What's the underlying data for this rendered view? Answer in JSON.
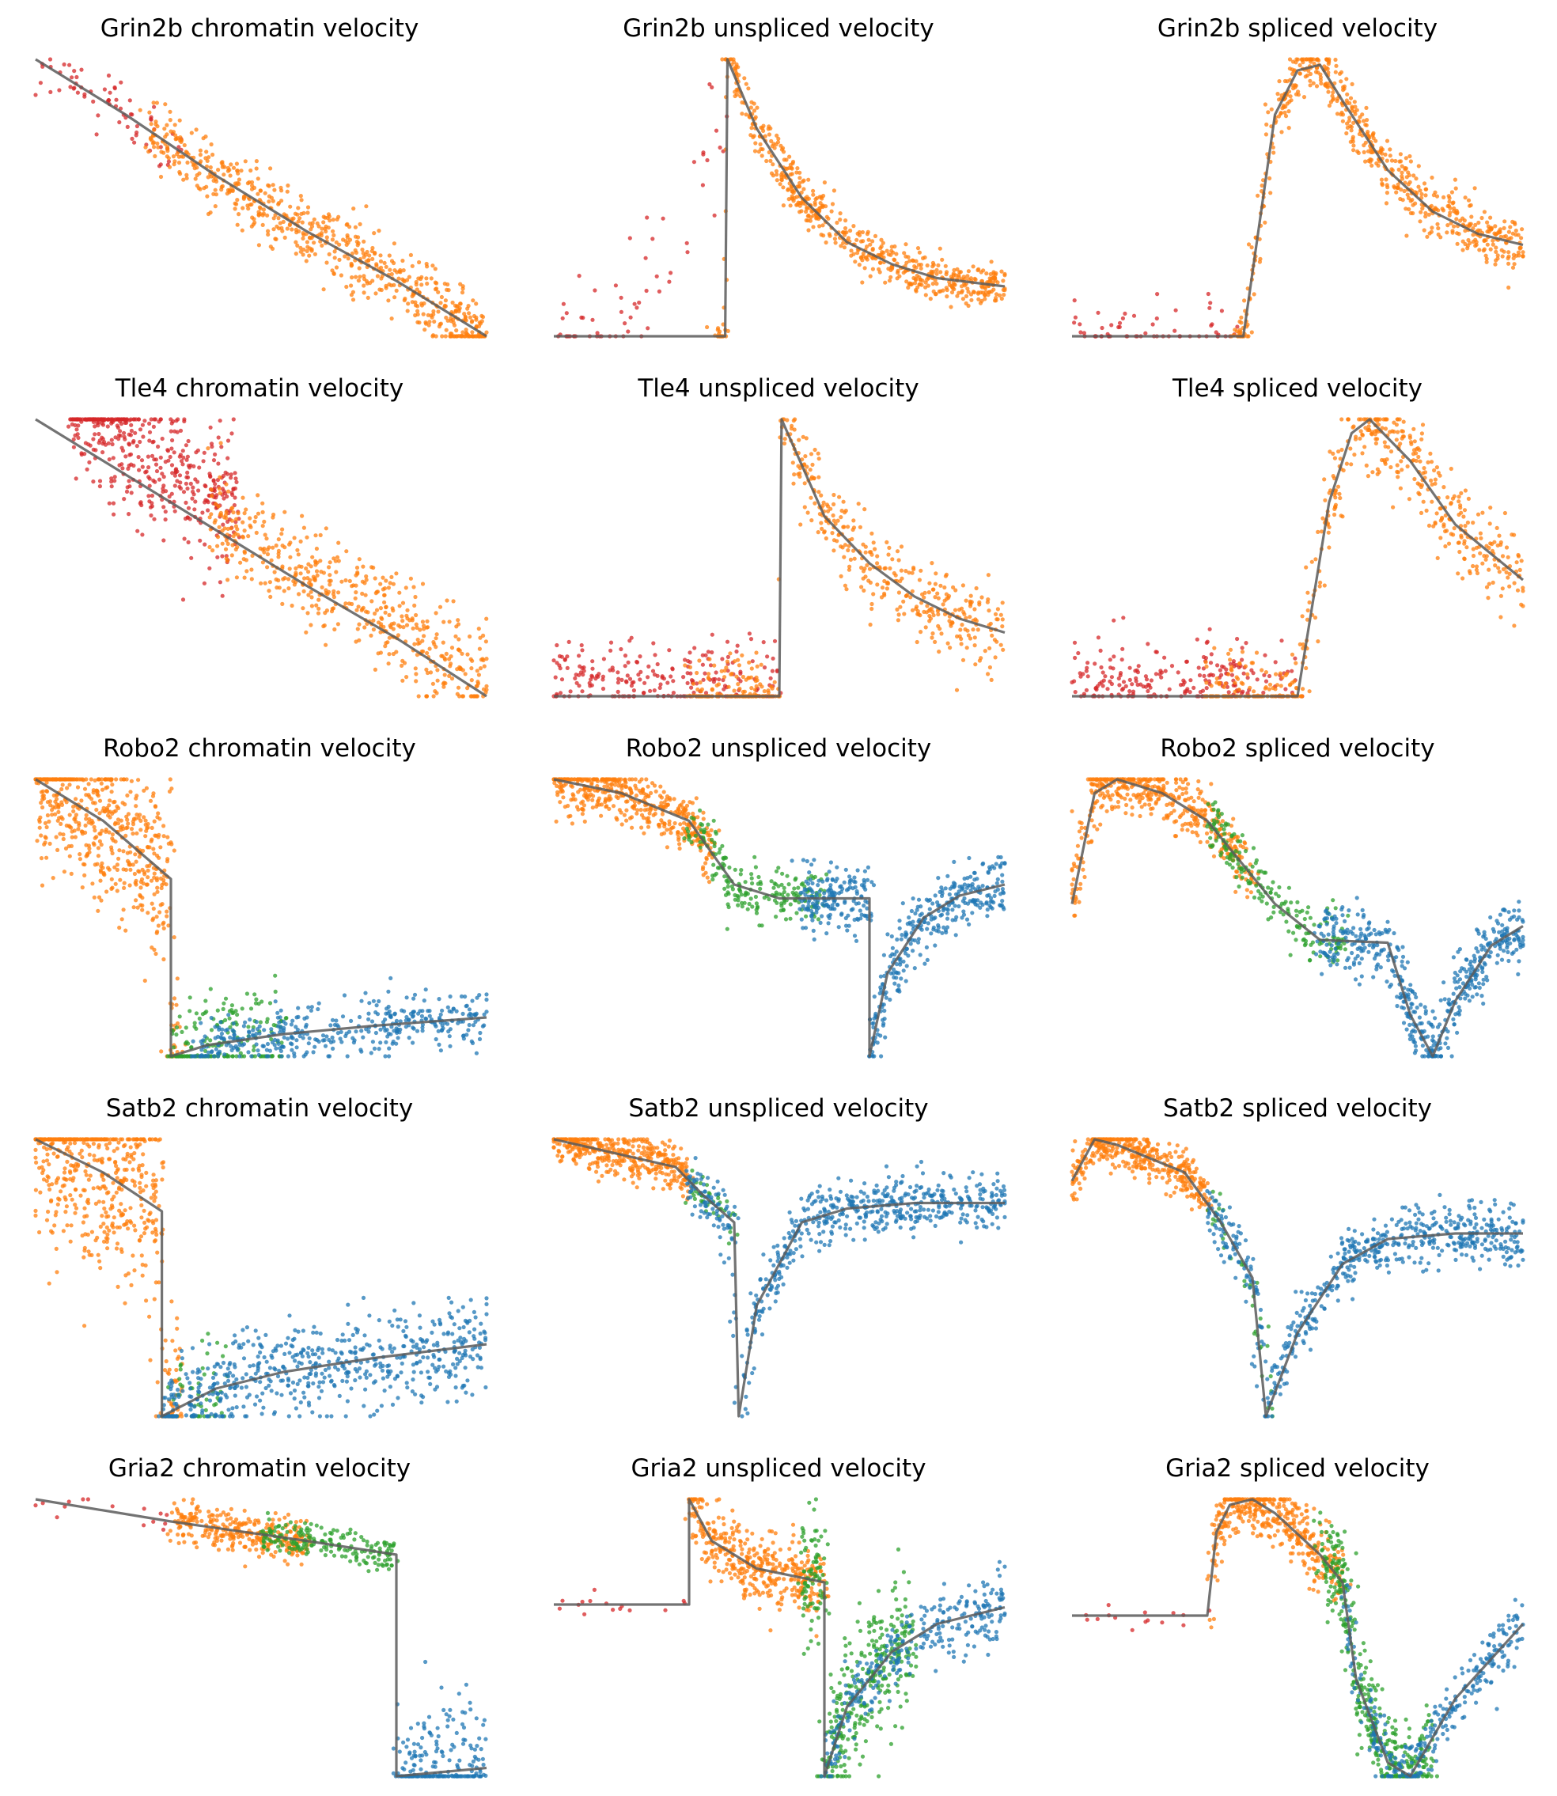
{
  "figure": {
    "rows": 5,
    "cols": 3,
    "colors": {
      "red": "#d62728",
      "orange": "#ff7f0e",
      "green": "#2ca02c",
      "blue": "#1f77b4",
      "curve": "#5a5a5a"
    }
  },
  "chart_data": [
    {
      "type": "scatter",
      "title": "Grin2b chromatin velocity",
      "gene": "Grin2b",
      "layer": "chromatin",
      "axes": "hidden",
      "curve": [
        [
          0,
          0
        ],
        [
          0.1,
          0.1
        ],
        [
          0.2,
          0.2
        ],
        [
          0.3,
          0.31
        ],
        [
          0.4,
          0.42
        ],
        [
          0.5,
          0.52
        ],
        [
          0.6,
          0.62
        ],
        [
          0.7,
          0.71
        ],
        [
          0.8,
          0.8
        ],
        [
          0.9,
          0.9
        ],
        [
          1,
          1
        ]
      ],
      "clusters": [
        {
          "color": "red",
          "n": 70,
          "x": [
            0.0,
            0.32
          ],
          "band": 0.06
        },
        {
          "color": "orange",
          "n": 650,
          "x": [
            0.25,
            1.0
          ],
          "band": 0.06
        }
      ]
    },
    {
      "type": "scatter",
      "title": "Grin2b unspliced velocity",
      "gene": "Grin2b",
      "layer": "unspliced",
      "axes": "hidden",
      "curve": [
        [
          0,
          1
        ],
        [
          0.38,
          1
        ],
        [
          0.385,
          0
        ],
        [
          0.45,
          0.25
        ],
        [
          0.55,
          0.5
        ],
        [
          0.65,
          0.66
        ],
        [
          0.75,
          0.74
        ],
        [
          0.85,
          0.79
        ],
        [
          1,
          0.82
        ]
      ],
      "clusters": [
        {
          "color": "red",
          "n": 60,
          "x": [
            0.0,
            0.38
          ],
          "band": 0.12,
          "shape": "rise"
        },
        {
          "color": "orange",
          "n": 600,
          "x": [
            0.36,
            1.0
          ],
          "band": 0.04
        }
      ]
    },
    {
      "type": "scatter",
      "title": "Grin2b spliced velocity",
      "gene": "Grin2b",
      "layer": "spliced",
      "axes": "hidden",
      "curve": [
        [
          0,
          1
        ],
        [
          0.38,
          1
        ],
        [
          0.45,
          0.2
        ],
        [
          0.5,
          0.04
        ],
        [
          0.55,
          0.02
        ],
        [
          0.6,
          0.15
        ],
        [
          0.7,
          0.4
        ],
        [
          0.8,
          0.55
        ],
        [
          0.9,
          0.63
        ],
        [
          1,
          0.67
        ]
      ],
      "clusters": [
        {
          "color": "red",
          "n": 60,
          "x": [
            0.0,
            0.38
          ],
          "band": 0.06
        },
        {
          "color": "orange",
          "n": 600,
          "x": [
            0.36,
            1.0
          ],
          "band": 0.05
        }
      ]
    },
    {
      "type": "scatter",
      "title": "Tle4 chromatin velocity",
      "gene": "Tle4",
      "layer": "chromatin",
      "axes": "hidden",
      "curve": [
        [
          0,
          0
        ],
        [
          0.2,
          0.2
        ],
        [
          0.4,
          0.4
        ],
        [
          0.6,
          0.6
        ],
        [
          0.8,
          0.79
        ],
        [
          1,
          1
        ]
      ],
      "clusters": [
        {
          "color": "red",
          "n": 450,
          "x": [
            0.08,
            0.45
          ],
          "band": 0.12,
          "offset": -0.12
        },
        {
          "color": "orange",
          "n": 500,
          "x": [
            0.38,
            1.0
          ],
          "band": 0.09,
          "offset": -0.05
        }
      ]
    },
    {
      "type": "scatter",
      "title": "Tle4 unspliced velocity",
      "gene": "Tle4",
      "layer": "unspliced",
      "axes": "hidden",
      "curve": [
        [
          0,
          1
        ],
        [
          0.5,
          1
        ],
        [
          0.505,
          0
        ],
        [
          0.6,
          0.35
        ],
        [
          0.7,
          0.52
        ],
        [
          0.8,
          0.64
        ],
        [
          0.9,
          0.72
        ],
        [
          1,
          0.77
        ]
      ],
      "clusters": [
        {
          "color": "red",
          "n": 220,
          "x": [
            0.0,
            0.5
          ],
          "band": 0.05,
          "shape": "flat"
        },
        {
          "color": "orange",
          "n": 500,
          "x": [
            0.3,
            1.0
          ],
          "band": 0.07
        }
      ]
    },
    {
      "type": "scatter",
      "title": "Tle4 spliced velocity",
      "gene": "Tle4",
      "layer": "spliced",
      "axes": "hidden",
      "curve": [
        [
          0,
          1
        ],
        [
          0.5,
          1
        ],
        [
          0.57,
          0.3
        ],
        [
          0.62,
          0.05
        ],
        [
          0.66,
          0.0
        ],
        [
          0.75,
          0.15
        ],
        [
          0.85,
          0.38
        ],
        [
          1,
          0.58
        ]
      ],
      "clusters": [
        {
          "color": "red",
          "n": 220,
          "x": [
            0.0,
            0.5
          ],
          "band": 0.04,
          "shape": "flat"
        },
        {
          "color": "orange",
          "n": 500,
          "x": [
            0.3,
            1.0
          ],
          "band": 0.08
        }
      ]
    },
    {
      "type": "scatter",
      "title": "Robo2 chromatin velocity",
      "gene": "Robo2",
      "layer": "chromatin",
      "axes": "hidden",
      "curve": [
        [
          0,
          0
        ],
        [
          0.15,
          0.15
        ],
        [
          0.3,
          0.36
        ],
        [
          0.3,
          1
        ],
        [
          0.38,
          0.96
        ],
        [
          0.55,
          0.92
        ],
        [
          0.75,
          0.89
        ],
        [
          1,
          0.86
        ]
      ],
      "clusters": [
        {
          "color": "orange",
          "n": 550,
          "x": [
            0.0,
            0.32
          ],
          "band": 0.15
        },
        {
          "color": "green",
          "n": 180,
          "x": [
            0.3,
            0.55
          ],
          "band": 0.1
        },
        {
          "color": "blue",
          "n": 400,
          "x": [
            0.35,
            1.0
          ],
          "band": 0.05
        }
      ]
    },
    {
      "type": "scatter",
      "title": "Robo2 unspliced velocity",
      "gene": "Robo2",
      "layer": "unspliced",
      "axes": "hidden",
      "curve": [
        [
          0,
          0
        ],
        [
          0.15,
          0.05
        ],
        [
          0.3,
          0.15
        ],
        [
          0.4,
          0.38
        ],
        [
          0.5,
          0.43
        ],
        [
          0.7,
          0.43
        ],
        [
          0.7,
          1
        ],
        [
          0.74,
          0.7
        ],
        [
          0.82,
          0.5
        ],
        [
          0.9,
          0.42
        ],
        [
          1,
          0.38
        ]
      ],
      "clusters": [
        {
          "color": "orange",
          "n": 450,
          "x": [
            0.0,
            0.35
          ],
          "band": 0.05
        },
        {
          "color": "green",
          "n": 200,
          "x": [
            0.3,
            0.6
          ],
          "band": 0.05
        },
        {
          "color": "blue",
          "n": 500,
          "x": [
            0.55,
            1.0
          ],
          "band": 0.06
        }
      ]
    },
    {
      "type": "scatter",
      "title": "Robo2 spliced velocity",
      "gene": "Robo2",
      "layer": "spliced",
      "axes": "hidden",
      "curve": [
        [
          0,
          0.45
        ],
        [
          0.05,
          0.05
        ],
        [
          0.1,
          0
        ],
        [
          0.2,
          0.05
        ],
        [
          0.3,
          0.15
        ],
        [
          0.45,
          0.45
        ],
        [
          0.55,
          0.58
        ],
        [
          0.7,
          0.59
        ],
        [
          0.75,
          0.85
        ],
        [
          0.8,
          1
        ],
        [
          0.85,
          0.8
        ],
        [
          0.93,
          0.6
        ],
        [
          1,
          0.53
        ]
      ],
      "clusters": [
        {
          "color": "orange",
          "n": 450,
          "x": [
            0.0,
            0.4
          ],
          "band": 0.05
        },
        {
          "color": "green",
          "n": 200,
          "x": [
            0.3,
            0.6
          ],
          "band": 0.05
        },
        {
          "color": "blue",
          "n": 500,
          "x": [
            0.55,
            1.0
          ],
          "band": 0.06
        }
      ]
    },
    {
      "type": "scatter",
      "title": "Satb2 chromatin velocity",
      "gene": "Satb2",
      "layer": "chromatin",
      "axes": "hidden",
      "curve": [
        [
          0,
          0
        ],
        [
          0.15,
          0.12
        ],
        [
          0.28,
          0.26
        ],
        [
          0.28,
          1
        ],
        [
          0.4,
          0.9
        ],
        [
          0.55,
          0.84
        ],
        [
          0.75,
          0.79
        ],
        [
          1,
          0.74
        ]
      ],
      "clusters": [
        {
          "color": "orange",
          "n": 550,
          "x": [
            0.0,
            0.32
          ],
          "band": 0.18
        },
        {
          "color": "green",
          "n": 50,
          "x": [
            0.3,
            0.42
          ],
          "band": 0.1
        },
        {
          "color": "blue",
          "n": 600,
          "x": [
            0.28,
            1.0
          ],
          "band": 0.08
        }
      ]
    },
    {
      "type": "scatter",
      "title": "Satb2 unspliced velocity",
      "gene": "Satb2",
      "layer": "unspliced",
      "axes": "hidden",
      "curve": [
        [
          0,
          0
        ],
        [
          0.27,
          0.1
        ],
        [
          0.33,
          0.2
        ],
        [
          0.4,
          0.3
        ],
        [
          0.41,
          1
        ],
        [
          0.45,
          0.6
        ],
        [
          0.55,
          0.3
        ],
        [
          0.65,
          0.25
        ],
        [
          0.8,
          0.23
        ],
        [
          1,
          0.23
        ]
      ],
      "clusters": [
        {
          "color": "orange",
          "n": 400,
          "x": [
            0.0,
            0.3
          ],
          "band": 0.04
        },
        {
          "color": "green",
          "n": 40,
          "x": [
            0.3,
            0.4
          ],
          "band": 0.05
        },
        {
          "color": "blue",
          "n": 600,
          "x": [
            0.3,
            1.0
          ],
          "band": 0.05
        }
      ]
    },
    {
      "type": "scatter",
      "title": "Satb2 spliced velocity",
      "gene": "Satb2",
      "layer": "spliced",
      "axes": "hidden",
      "curve": [
        [
          0,
          0.15
        ],
        [
          0.05,
          0
        ],
        [
          0.1,
          0.02
        ],
        [
          0.25,
          0.12
        ],
        [
          0.33,
          0.3
        ],
        [
          0.4,
          0.5
        ],
        [
          0.43,
          1
        ],
        [
          0.5,
          0.7
        ],
        [
          0.6,
          0.45
        ],
        [
          0.7,
          0.36
        ],
        [
          0.85,
          0.34
        ],
        [
          1,
          0.34
        ]
      ],
      "clusters": [
        {
          "color": "orange",
          "n": 400,
          "x": [
            0.0,
            0.3
          ],
          "band": 0.04
        },
        {
          "color": "green",
          "n": 40,
          "x": [
            0.3,
            0.45
          ],
          "band": 0.05
        },
        {
          "color": "blue",
          "n": 600,
          "x": [
            0.3,
            1.0
          ],
          "band": 0.05
        }
      ]
    },
    {
      "type": "scatter",
      "title": "Gria2 chromatin velocity",
      "gene": "Gria2",
      "layer": "chromatin",
      "axes": "hidden",
      "curve": [
        [
          0,
          0
        ],
        [
          0.3,
          0.08
        ],
        [
          0.6,
          0.15
        ],
        [
          0.8,
          0.2
        ],
        [
          0.8,
          1
        ],
        [
          1,
          0.97
        ]
      ],
      "clusters": [
        {
          "color": "red",
          "n": 15,
          "x": [
            0.0,
            0.3
          ],
          "band": 0.04
        },
        {
          "color": "orange",
          "n": 300,
          "x": [
            0.3,
            0.6
          ],
          "band": 0.04
        },
        {
          "color": "green",
          "n": 200,
          "x": [
            0.5,
            0.8
          ],
          "band": 0.03
        },
        {
          "color": "blue",
          "n": 200,
          "x": [
            0.8,
            1.0
          ],
          "band": 0.12
        }
      ]
    },
    {
      "type": "scatter",
      "title": "Gria2 unspliced velocity",
      "gene": "Gria2",
      "layer": "unspliced",
      "axes": "hidden",
      "curve": [
        [
          0,
          0.38
        ],
        [
          0.3,
          0.38
        ],
        [
          0.3,
          0
        ],
        [
          0.35,
          0.15
        ],
        [
          0.45,
          0.25
        ],
        [
          0.6,
          0.3
        ],
        [
          0.6,
          1
        ],
        [
          0.65,
          0.75
        ],
        [
          0.75,
          0.55
        ],
        [
          0.85,
          0.45
        ],
        [
          1,
          0.39
        ]
      ],
      "clusters": [
        {
          "color": "red",
          "n": 15,
          "x": [
            0.0,
            0.3
          ],
          "band": 0.02
        },
        {
          "color": "orange",
          "n": 400,
          "x": [
            0.3,
            0.6
          ],
          "band": 0.06
        },
        {
          "color": "green",
          "n": 400,
          "x": [
            0.55,
            0.8
          ],
          "band": 0.12
        },
        {
          "color": "blue",
          "n": 300,
          "x": [
            0.6,
            1.0
          ],
          "band": 0.06
        }
      ]
    },
    {
      "type": "scatter",
      "title": "Gria2 spliced velocity",
      "gene": "Gria2",
      "layer": "spliced",
      "axes": "hidden",
      "curve": [
        [
          0,
          0.42
        ],
        [
          0.3,
          0.42
        ],
        [
          0.32,
          0.12
        ],
        [
          0.35,
          0.02
        ],
        [
          0.4,
          0.0
        ],
        [
          0.45,
          0.05
        ],
        [
          0.55,
          0.2
        ],
        [
          0.6,
          0.3
        ],
        [
          0.63,
          0.65
        ],
        [
          0.7,
          0.95
        ],
        [
          0.75,
          1
        ],
        [
          0.85,
          0.72
        ],
        [
          1,
          0.45
        ]
      ],
      "clusters": [
        {
          "color": "red",
          "n": 15,
          "x": [
            0.0,
            0.3
          ],
          "band": 0.02
        },
        {
          "color": "orange",
          "n": 400,
          "x": [
            0.3,
            0.6
          ],
          "band": 0.06
        },
        {
          "color": "green",
          "n": 400,
          "x": [
            0.55,
            0.8
          ],
          "band": 0.08
        },
        {
          "color": "blue",
          "n": 300,
          "x": [
            0.6,
            1.0
          ],
          "band": 0.05
        }
      ]
    }
  ]
}
